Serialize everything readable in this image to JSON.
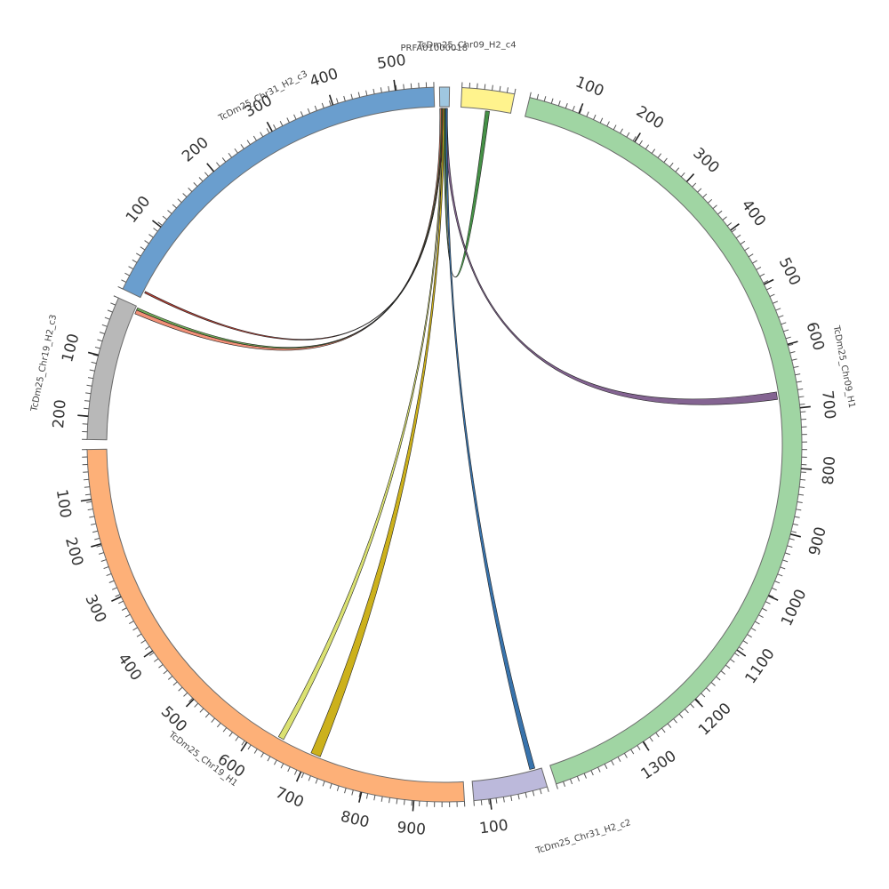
{
  "segments": [
    {
      "id": "prfa",
      "label": "PRFA01000018",
      "color": "#9fc7e0",
      "length": 10,
      "ticks": []
    },
    {
      "id": "chr09_h2_c4",
      "label": "TcDm25_Chr09_H2_c4",
      "color": "#fff38d",
      "length": 75,
      "ticks": []
    },
    {
      "id": "chr09_h1",
      "label": "TcDm25_Chr09_H1",
      "color": "#a0d5a3",
      "length": 1350,
      "ticks": [
        "100",
        "200",
        "300",
        "400",
        "500",
        "600",
        "700",
        "800",
        "900",
        "1000",
        "1100",
        "1200",
        "1300"
      ]
    },
    {
      "id": "chr31_h2_c2",
      "label": "TcDm25_Chr31_H2_c2",
      "color": "#bcb9db",
      "length": 120,
      "ticks": [
        "100"
      ]
    },
    {
      "id": "chr19_h1",
      "label": "TcDm25_Chr19_H1",
      "color": "#fdb078",
      "length": 960,
      "ticks": [
        "100",
        "200",
        "300",
        "400",
        "500",
        "600",
        "700",
        "800",
        "900"
      ]
    },
    {
      "id": "chr19_h2_c3",
      "label": "TcDm25_Chr19_H2_c3",
      "color": "#b8b8b8",
      "length": 240,
      "ticks": [
        "100",
        "200"
      ]
    },
    {
      "id": "chr31_h2_c3",
      "label": "TcDm25_Chr31_H2_c3",
      "color": "#6a9ece",
      "length": 560,
      "ticks": [
        "100",
        "200",
        "300",
        "400",
        "500"
      ]
    }
  ],
  "links": [
    {
      "from": "prfa",
      "to": "chr09_h2_c4",
      "color": "#3b8a3c"
    },
    {
      "from": "prfa",
      "to": "chr09_h1",
      "color": "#7d5c8c"
    },
    {
      "from": "prfa",
      "to": "chr31_h2_c2",
      "color": "#2d6ca8"
    },
    {
      "from": "prfa",
      "to": "chr19_h1",
      "color": "#d9e06a"
    },
    {
      "from": "prfa",
      "to": "chr19_h1",
      "color": "#c9ad10"
    },
    {
      "from": "prfa",
      "to": "chr19_h2_c3",
      "color": "#f08a70"
    },
    {
      "from": "prfa",
      "to": "chr19_h2_c3",
      "color": "#6aa84f"
    },
    {
      "from": "prfa",
      "to": "chr31_h2_c3",
      "color": "#c0392b"
    }
  ]
}
